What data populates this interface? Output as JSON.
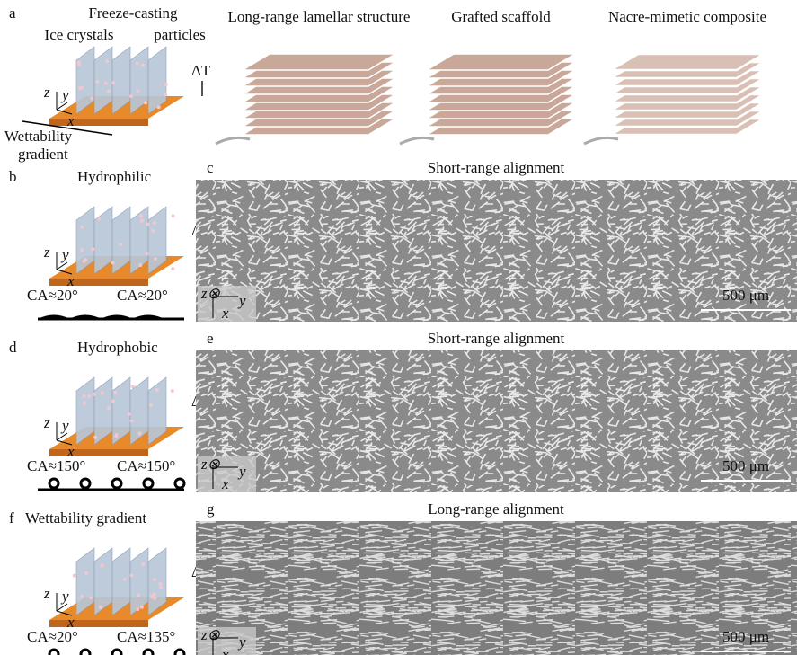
{
  "panel_a": {
    "label": "a",
    "freeze_casting": "Freeze-casting",
    "ice_crystals": "Ice crystals",
    "particles": "particles",
    "delta_t": "ΔT",
    "axes": [
      "z",
      "y",
      "x"
    ],
    "wettability": "Wettability",
    "gradient": "gradient",
    "steps": [
      "Long-range lamellar structure",
      "Grafted scaffold",
      "Nacre-mimetic composite"
    ]
  },
  "rows": [
    {
      "schematic_label": "b",
      "title": "Hydrophilic",
      "delta_t": "ΔT",
      "axes": [
        "z",
        "y",
        "x"
      ],
      "contact_angles": [
        "CA≈20°",
        "CA≈20°"
      ],
      "image_label": "c",
      "image_title": "Short-range alignment",
      "image_axes": [
        "z⊗",
        "y",
        "x"
      ],
      "scale_bar": "500 μm"
    },
    {
      "schematic_label": "d",
      "title": "Hydrophobic",
      "delta_t": "ΔT",
      "axes": [
        "z",
        "y",
        "x"
      ],
      "contact_angles": [
        "CA≈150°",
        "CA≈150°"
      ],
      "image_label": "e",
      "image_title": "Short-range alignment",
      "image_axes": [
        "z⊗",
        "y",
        "x"
      ],
      "scale_bar": "500 μm"
    },
    {
      "schematic_label": "f",
      "title": "Wettability gradient",
      "delta_t": "ΔT",
      "axes": [
        "z",
        "y",
        "x"
      ],
      "contact_angles": [
        "CA≈20°",
        "CA≈135°"
      ],
      "image_label": "g",
      "image_title": "Long-range alignment",
      "image_axes": [
        "z⊗",
        "y",
        "x"
      ],
      "scale_bar": "500 μm"
    }
  ]
}
